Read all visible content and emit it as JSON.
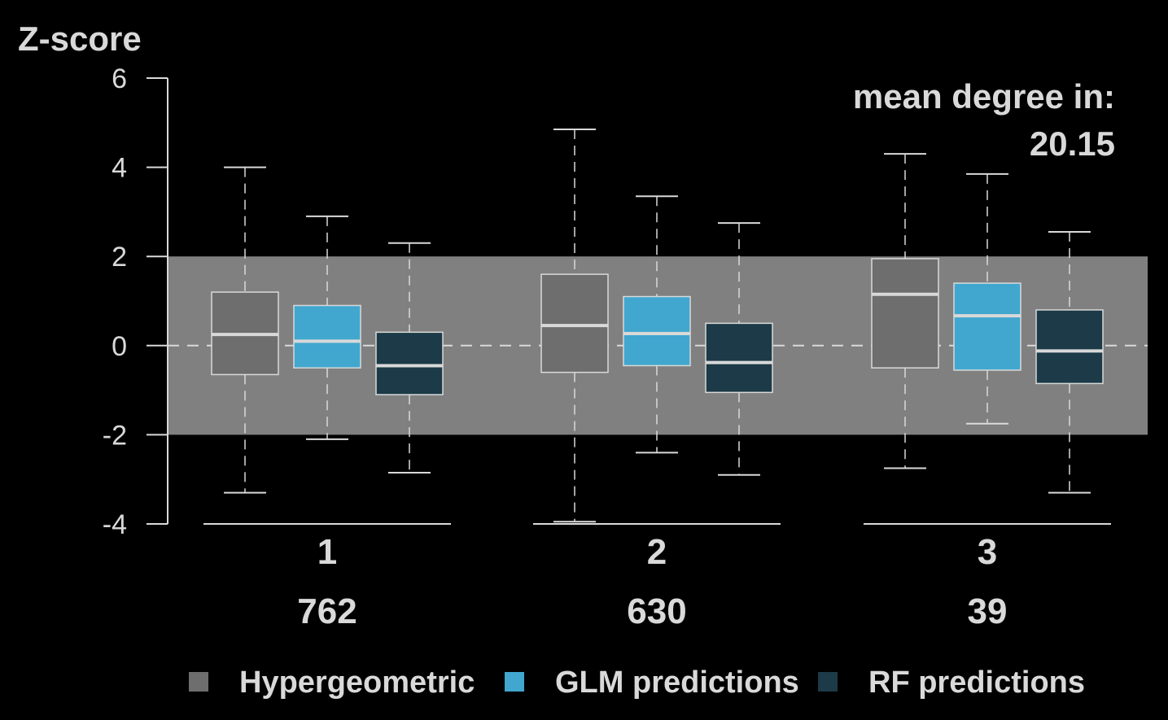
{
  "chart_data": {
    "type": "boxplot",
    "ylabel": "Z-score",
    "ylim": [
      -4,
      6
    ],
    "yticks": [
      -4,
      -2,
      0,
      2,
      4,
      6
    ],
    "reference_band": [
      -2,
      2
    ],
    "reference_line": 0,
    "annotation": {
      "line1": "mean degree in:",
      "line2": "20.15"
    },
    "groups": [
      {
        "label": "1",
        "count": "762",
        "boxes": [
          {
            "series": "Hypergeometric",
            "whisker_low": -3.3,
            "q1": -0.65,
            "median": 0.25,
            "q3": 1.2,
            "whisker_high": 4.0
          },
          {
            "series": "GLM predictions",
            "whisker_low": -2.1,
            "q1": -0.5,
            "median": 0.1,
            "q3": 0.9,
            "whisker_high": 2.9
          },
          {
            "series": "RF predictions",
            "whisker_low": -2.85,
            "q1": -1.1,
            "median": -0.45,
            "q3": 0.3,
            "whisker_high": 2.3
          }
        ]
      },
      {
        "label": "2",
        "count": "630",
        "boxes": [
          {
            "series": "Hypergeometric",
            "whisker_low": -3.95,
            "q1": -0.6,
            "median": 0.45,
            "q3": 1.6,
            "whisker_high": 4.85
          },
          {
            "series": "GLM predictions",
            "whisker_low": -2.4,
            "q1": -0.45,
            "median": 0.27,
            "q3": 1.1,
            "whisker_high": 3.35
          },
          {
            "series": "RF predictions",
            "whisker_low": -2.9,
            "q1": -1.05,
            "median": -0.38,
            "q3": 0.5,
            "whisker_high": 2.75
          }
        ]
      },
      {
        "label": "3",
        "count": "39",
        "boxes": [
          {
            "series": "Hypergeometric",
            "whisker_low": -2.75,
            "q1": -0.5,
            "median": 1.15,
            "q3": 1.95,
            "whisker_high": 4.3
          },
          {
            "series": "GLM predictions",
            "whisker_low": -1.75,
            "q1": -0.55,
            "median": 0.67,
            "q3": 1.4,
            "whisker_high": 3.85
          },
          {
            "series": "RF predictions",
            "whisker_low": -3.3,
            "q1": -0.85,
            "median": -0.12,
            "q3": 0.8,
            "whisker_high": 2.55
          }
        ]
      }
    ],
    "series": [
      {
        "name": "Hypergeometric",
        "color": "#6e6e6e"
      },
      {
        "name": "GLM predictions",
        "color": "#41a7cf"
      },
      {
        "name": "RF predictions",
        "color": "#1c3a47"
      }
    ],
    "legend_position": "bottom",
    "colors": {
      "background": "#000000",
      "band": "#808080",
      "axis": "#d9d9d9",
      "median": "#d9d9d9",
      "whisker": "#d9d9d9"
    }
  }
}
